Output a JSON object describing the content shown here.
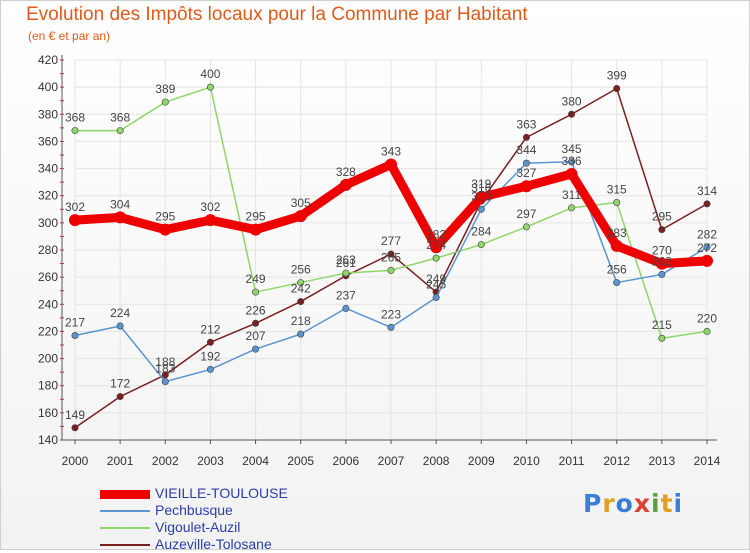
{
  "title": "Evolution des Impôts locaux pour la Commune par Habitant",
  "subtitle": "(en € et par an)",
  "brand": {
    "text": "Proxiti",
    "colors": [
      "#3a7ed8",
      "#e0a020",
      "#3a7ed8",
      "#e04030",
      "#5aa040",
      "#e0a020",
      "#3a7ed8"
    ]
  },
  "chart_data": {
    "type": "line",
    "x": [
      2000,
      2001,
      2002,
      2003,
      2004,
      2005,
      2006,
      2007,
      2008,
      2009,
      2010,
      2011,
      2012,
      2013,
      2014
    ],
    "ylim": [
      140,
      420
    ],
    "yticks": [
      140,
      160,
      180,
      200,
      220,
      240,
      260,
      280,
      300,
      320,
      340,
      360,
      380,
      400,
      420
    ],
    "grid": true,
    "legend_position": "bottom-left",
    "series": [
      {
        "name": "VIEILLE-TOULOUSE",
        "color": "#ee0000",
        "values": [
          302,
          304,
          295,
          302,
          295,
          305,
          328,
          343,
          282,
          319,
          327,
          336,
          283,
          270,
          272
        ]
      },
      {
        "name": "Pechbusque",
        "color": "#5b95cf",
        "values": [
          217,
          224,
          183,
          192,
          207,
          218,
          237,
          223,
          245,
          310,
          344,
          345,
          256,
          262,
          282
        ]
      },
      {
        "name": "Vigoulet-Auzil",
        "color": "#8fd66a",
        "values": [
          368,
          368,
          389,
          400,
          249,
          256,
          263,
          265,
          274,
          284,
          297,
          311,
          315,
          215,
          220
        ]
      },
      {
        "name": "Auzeville-Tolosane",
        "color": "#7a1f1f",
        "values": [
          149,
          172,
          188,
          212,
          226,
          242,
          261,
          277,
          249,
          316,
          363,
          380,
          399,
          295,
          314
        ]
      }
    ]
  }
}
